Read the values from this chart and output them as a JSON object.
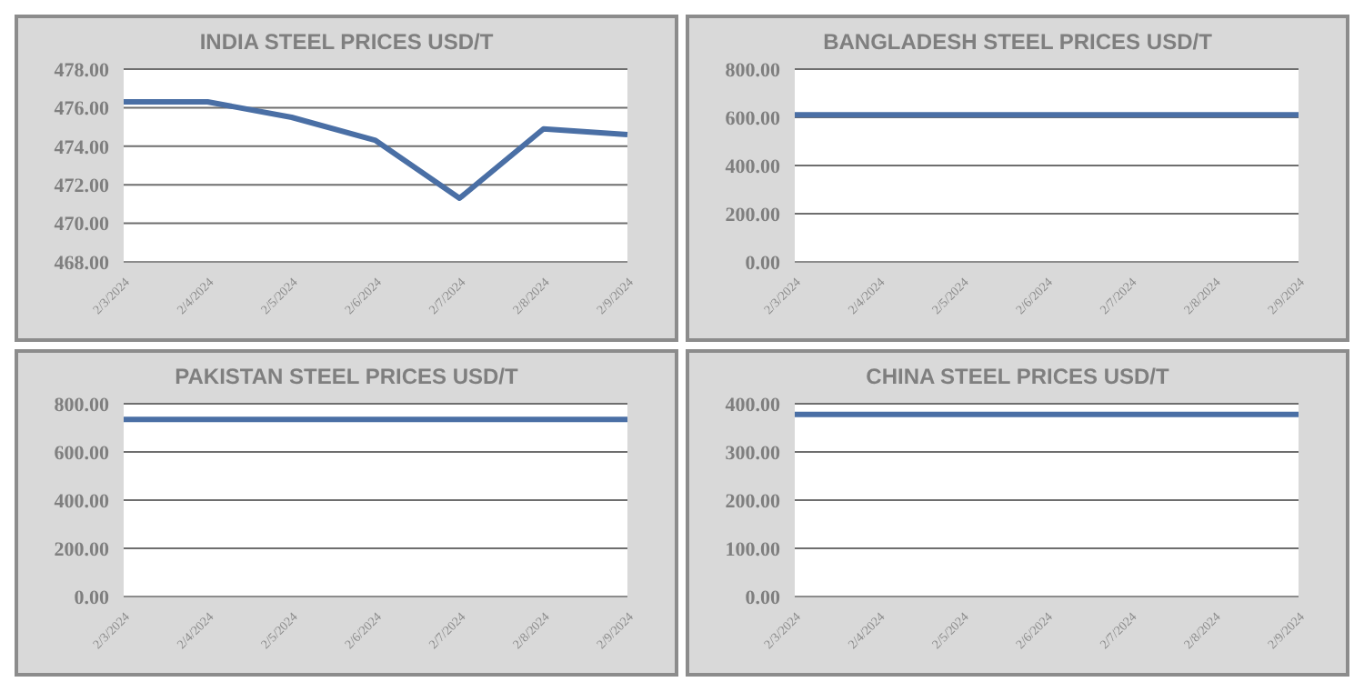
{
  "chart_data": [
    {
      "type": "line",
      "title": "INDIA STEEL PRICES USD/T",
      "categories": [
        "2/3/2024",
        "2/4/2024",
        "2/5/2024",
        "2/6/2024",
        "2/7/2024",
        "2/8/2024",
        "2/9/2024"
      ],
      "values": [
        476.3,
        476.3,
        475.5,
        474.3,
        471.3,
        474.9,
        474.6
      ],
      "color": "#4a6fa5",
      "ylim": [
        468,
        478
      ],
      "yticks": [
        {
          "value": 468,
          "label": "468.00"
        },
        {
          "value": 470,
          "label": "470.00"
        },
        {
          "value": 472,
          "label": "472.00"
        },
        {
          "value": 474,
          "label": "474.00"
        },
        {
          "value": 476,
          "label": "476.00"
        },
        {
          "value": 478,
          "label": "478.00"
        }
      ],
      "grid": "y",
      "legend": false,
      "marker": "none"
    },
    {
      "type": "line",
      "title": "BANGLADESH STEEL PRICES USD/T",
      "categories": [
        "2/3/2024",
        "2/4/2024",
        "2/5/2024",
        "2/6/2024",
        "2/7/2024",
        "2/8/2024",
        "2/9/2024"
      ],
      "values": [
        610,
        610,
        610,
        610,
        610,
        610,
        610
      ],
      "color": "#4a6fa5",
      "ylim": [
        0,
        800
      ],
      "yticks": [
        {
          "value": 0,
          "label": "0.00"
        },
        {
          "value": 200,
          "label": "200.00"
        },
        {
          "value": 400,
          "label": "400.00"
        },
        {
          "value": 600,
          "label": "600.00"
        },
        {
          "value": 800,
          "label": "800.00"
        }
      ],
      "grid": "y",
      "legend": false,
      "marker": "none"
    },
    {
      "type": "line",
      "title": "PAKISTAN STEEL PRICES USD/T",
      "categories": [
        "2/3/2024",
        "2/4/2024",
        "2/5/2024",
        "2/6/2024",
        "2/7/2024",
        "2/8/2024",
        "2/9/2024"
      ],
      "values": [
        735,
        735,
        735,
        735,
        735,
        735,
        735
      ],
      "color": "#4a6fa5",
      "ylim": [
        0,
        800
      ],
      "yticks": [
        {
          "value": 0,
          "label": "0.00"
        },
        {
          "value": 200,
          "label": "200.00"
        },
        {
          "value": 400,
          "label": "400.00"
        },
        {
          "value": 600,
          "label": "600.00"
        },
        {
          "value": 800,
          "label": "800.00"
        }
      ],
      "grid": "y",
      "legend": false,
      "marker": "none"
    },
    {
      "type": "line",
      "title": "CHINA STEEL PRICES USD/T",
      "categories": [
        "2/3/2024",
        "2/4/2024",
        "2/5/2024",
        "2/6/2024",
        "2/7/2024",
        "2/8/2024",
        "2/9/2024"
      ],
      "values": [
        378,
        378,
        378,
        378,
        378,
        378,
        378
      ],
      "color": "#4a6fa5",
      "ylim": [
        0,
        400
      ],
      "yticks": [
        {
          "value": 0,
          "label": "0.00"
        },
        {
          "value": 100,
          "label": "100.00"
        },
        {
          "value": 200,
          "label": "200.00"
        },
        {
          "value": 300,
          "label": "300.00"
        },
        {
          "value": 400,
          "label": "400.00"
        }
      ],
      "grid": "y",
      "legend": false,
      "marker": "none"
    }
  ]
}
